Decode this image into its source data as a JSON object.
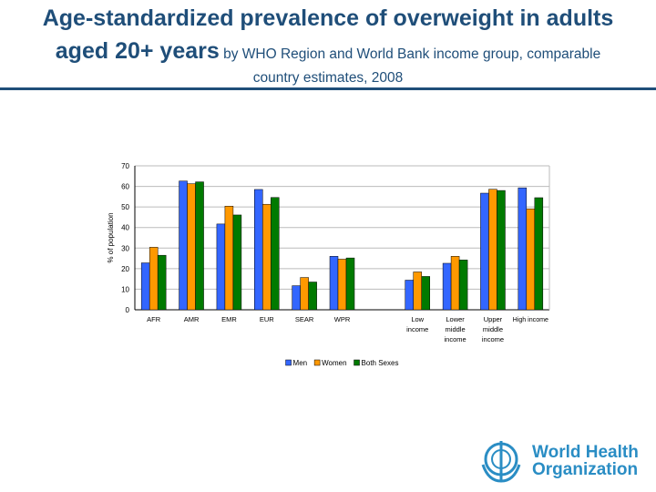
{
  "title": {
    "line1": "Age-standardized prevalence of overweight  in adults",
    "line2_big": "aged 20+ years",
    "line2_small": " by WHO Region and World Bank income group, comparable",
    "line3": "country estimates, 2008"
  },
  "chart_data": {
    "type": "bar",
    "ylabel": "% of population",
    "ylim": [
      0,
      70
    ],
    "yticks": [
      0,
      10,
      20,
      30,
      40,
      50,
      60,
      70
    ],
    "grid": true,
    "legend_position": "bottom",
    "categories": [
      "AFR",
      "AMR",
      "EMR",
      "EUR",
      "SEAR",
      "WPR",
      "",
      "Low income",
      "Lower middle income",
      "Upper middle income",
      "High income"
    ],
    "category_lines": [
      [
        "AFR"
      ],
      [
        "AMR"
      ],
      [
        "EMR"
      ],
      [
        "EUR"
      ],
      [
        "SEAR"
      ],
      [
        "WPR"
      ],
      [],
      [
        "Low",
        "income"
      ],
      [
        "Lower",
        "middle",
        "income"
      ],
      [
        "Upper",
        "middle",
        "income"
      ],
      [
        "High income"
      ]
    ],
    "series": [
      {
        "name": "Men",
        "color": "#3366ff",
        "values": [
          22.8,
          62.6,
          41.7,
          58.5,
          11.7,
          26.0,
          null,
          14.4,
          22.6,
          56.7,
          59.3
        ]
      },
      {
        "name": "Women",
        "color": "#ff9900",
        "values": [
          30.4,
          61.3,
          50.4,
          51.3,
          15.7,
          24.6,
          null,
          18.4,
          26.0,
          58.6,
          49.1
        ]
      },
      {
        "name": "Both Sexes",
        "color": "#007a00",
        "values": [
          26.5,
          62.2,
          46.1,
          54.6,
          13.5,
          25.2,
          null,
          16.2,
          24.2,
          58.0,
          54.5
        ]
      }
    ]
  },
  "logo": {
    "line1": "World Health",
    "line2": "Organization"
  }
}
